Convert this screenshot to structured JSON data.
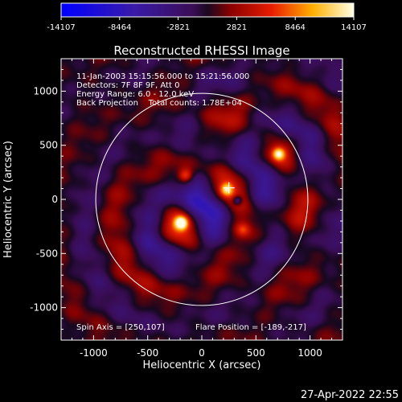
{
  "chart_data": {
    "type": "heatmap",
    "title": "Reconstructed RHESSI Image",
    "xlabel": "Heliocentric X (arcsec)",
    "ylabel": "Heliocentric Y (arcsec)",
    "xlim": [
      -1300,
      1300
    ],
    "ylim": [
      -1300,
      1300
    ],
    "xticks": [
      -1000,
      -500,
      0,
      500,
      1000
    ],
    "yticks": [
      -1000,
      -500,
      0,
      500,
      1000
    ],
    "colorbar": {
      "min": -14107,
      "max": 14107,
      "ticks": [
        "-14107",
        "-8464",
        "-2821",
        "2821",
        "8464",
        "14107"
      ]
    },
    "info_lines": [
      "11-Jan-2003 15:15:56.000 to 15:21:56.000",
      "Detectors: 7F 8F 9F, Att 0",
      "Energy Range: 6.0 - 12.0 keV",
      "Back Projection    Total counts: 1.78E+04"
    ],
    "spin_axis_label": "Spin Axis = [250,107]",
    "flare_position_label": "Flare Position = [-189,-217]",
    "spin_axis": [
      250,
      107
    ],
    "flare_position": [
      -189,
      -217
    ],
    "solar_limb_radius": 980,
    "peaks": [
      {
        "x": -189,
        "y": -217,
        "rel_intensity": 1.0
      },
      {
        "x": 710,
        "y": 420,
        "rel_intensity": 0.8
      },
      {
        "x": 230,
        "y": 90,
        "rel_intensity": 0.7
      },
      {
        "x": -150,
        "y": 220,
        "rel_intensity": 0.5
      },
      {
        "x": 380,
        "y": -280,
        "rel_intensity": 0.35
      }
    ],
    "date_stamp": "27-Apr-2022 22:55"
  }
}
